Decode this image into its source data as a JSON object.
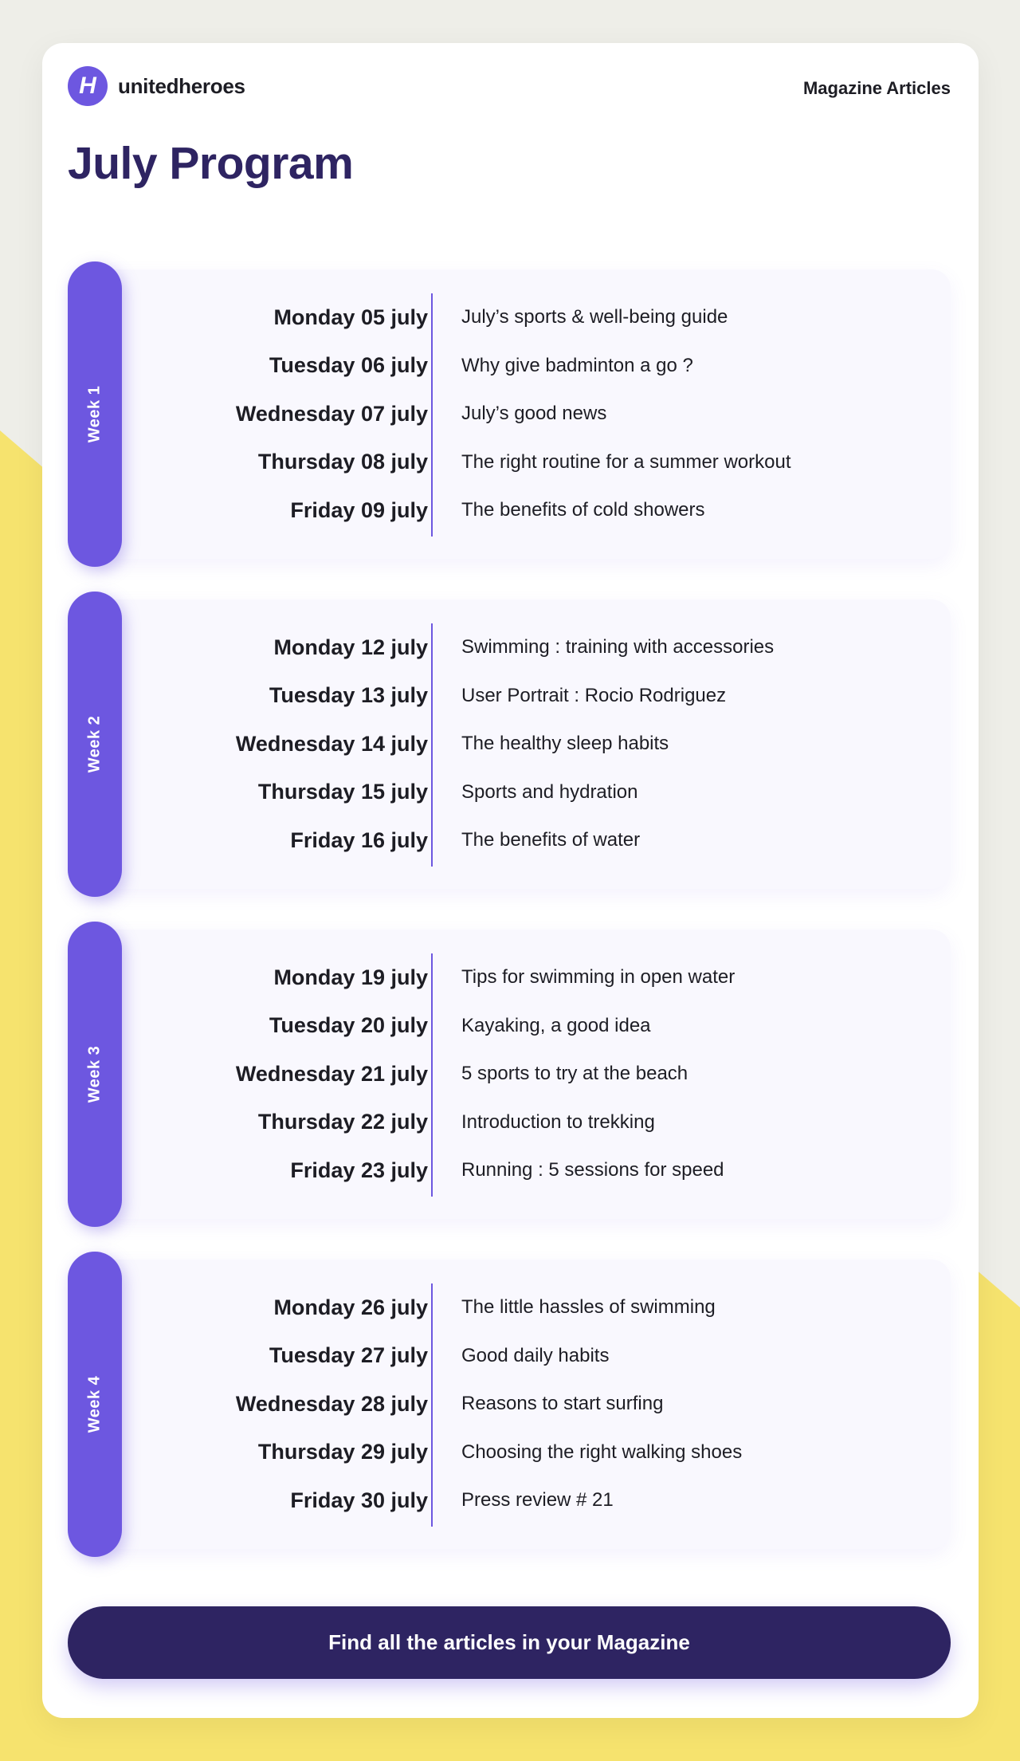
{
  "header": {
    "logo_mark": "H",
    "logo_text": "unitedheroes",
    "link": "Magazine Articles"
  },
  "title": "July Program",
  "colors": {
    "accent": "#6d57e0",
    "dark": "#2e2462",
    "yellow": "#f6e36e",
    "background": "#eeeee8"
  },
  "weeks": [
    {
      "label": "Week 1",
      "days": [
        {
          "date": "Monday 05 july",
          "article": "July’s sports & well-being guide"
        },
        {
          "date": "Tuesday 06 july",
          "article": "Why give badminton a go ?"
        },
        {
          "date": "Wednesday 07 july",
          "article": "July’s good news"
        },
        {
          "date": "Thursday 08 july",
          "article": "The right routine for a summer workout"
        },
        {
          "date": "Friday 09 july",
          "article": "The benefits of cold showers"
        }
      ]
    },
    {
      "label": "Week 2",
      "days": [
        {
          "date": "Monday 12 july",
          "article": "Swimming : training with accessories"
        },
        {
          "date": "Tuesday 13 july",
          "article": "User Portrait : Rocio Rodriguez"
        },
        {
          "date": "Wednesday 14 july",
          "article": "The healthy sleep habits"
        },
        {
          "date": "Thursday 15 july",
          "article": "Sports and hydration"
        },
        {
          "date": "Friday 16 july",
          "article": "The benefits of water"
        }
      ]
    },
    {
      "label": "Week 3",
      "days": [
        {
          "date": "Monday 19 july",
          "article": "Tips for swimming in open water"
        },
        {
          "date": "Tuesday 20 july",
          "article": "Kayaking, a good idea"
        },
        {
          "date": "Wednesday 21 july",
          "article": "5 sports to try at the beach"
        },
        {
          "date": "Thursday 22 july",
          "article": "Introduction to trekking"
        },
        {
          "date": "Friday 23 july",
          "article": "Running : 5 sessions for speed"
        }
      ]
    },
    {
      "label": "Week 4",
      "days": [
        {
          "date": "Monday 26 july",
          "article": "The little hassles of swimming"
        },
        {
          "date": "Tuesday 27 july",
          "article": "Good daily habits"
        },
        {
          "date": "Wednesday 28 july",
          "article": "Reasons to start surfing"
        },
        {
          "date": "Thursday 29 july",
          "article": "Choosing the right walking shoes"
        },
        {
          "date": "Friday 30 july",
          "article": "Press review # 21"
        }
      ]
    }
  ],
  "cta": "Find all the articles in your Magazine"
}
